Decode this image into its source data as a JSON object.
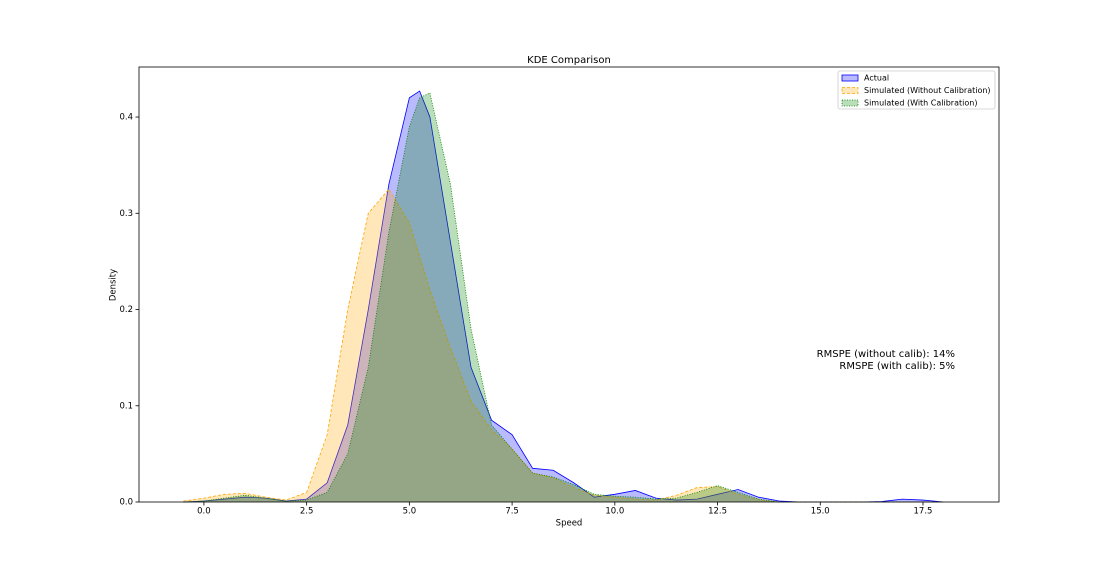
{
  "chart_data": {
    "type": "area",
    "title": "KDE Comparison",
    "xlabel": "Speed",
    "ylabel": "Density",
    "x": [
      -0.5,
      0,
      0.5,
      1,
      1.5,
      2,
      2.5,
      3,
      3.5,
      4,
      4.5,
      5,
      5.25,
      5.5,
      6,
      6.5,
      7,
      7.5,
      8,
      8.5,
      9,
      9.5,
      10,
      10.5,
      11,
      11.5,
      12,
      12.5,
      13,
      13.5,
      14,
      14.5,
      15,
      15.5,
      16,
      16.5,
      17,
      17.5,
      18
    ],
    "series": [
      {
        "name": "Actual",
        "color": "#0000ff",
        "linestyle": "solid",
        "values": [
          0,
          0.001,
          0.003,
          0.005,
          0.004,
          0.001,
          0.003,
          0.02,
          0.08,
          0.2,
          0.33,
          0.42,
          0.427,
          0.4,
          0.27,
          0.14,
          0.085,
          0.07,
          0.035,
          0.033,
          0.02,
          0.005,
          0.008,
          0.012,
          0.004,
          0.002,
          0.003,
          0.008,
          0.013,
          0.005,
          0.001,
          0,
          0,
          0,
          0,
          0.0005,
          0.003,
          0.002,
          0
        ]
      },
      {
        "name": "Simulated (Without Calibration)",
        "color": "#ffa500",
        "linestyle": "dashed",
        "values": [
          0.001,
          0.004,
          0.008,
          0.009,
          0.005,
          0.002,
          0.01,
          0.07,
          0.2,
          0.3,
          0.325,
          0.29,
          0.255,
          0.22,
          0.16,
          0.105,
          0.075,
          0.055,
          0.03,
          0.025,
          0.015,
          0.007,
          0.005,
          0.003,
          0.002,
          0.007,
          0.015,
          0.016,
          0.008,
          0.002,
          0,
          0,
          0,
          0,
          0,
          0,
          0,
          0,
          0
        ]
      },
      {
        "name": "Simulated (With Calibration)",
        "color": "#008000",
        "linestyle": "dotted",
        "values": [
          0,
          0.001,
          0.004,
          0.007,
          0.004,
          0.001,
          0.002,
          0.01,
          0.05,
          0.14,
          0.28,
          0.39,
          0.42,
          0.425,
          0.33,
          0.18,
          0.08,
          0.055,
          0.03,
          0.026,
          0.018,
          0.008,
          0.006,
          0.005,
          0.003,
          0.004,
          0.01,
          0.017,
          0.01,
          0.003,
          0,
          0,
          0,
          0,
          0,
          0,
          0,
          0,
          0
        ]
      }
    ],
    "xlim": [
      -1.58,
      19.35
    ],
    "ylim": [
      0,
      0.452
    ],
    "xticks": [
      {
        "value": 0,
        "label": "0.0"
      },
      2.5,
      {
        "value": 5,
        "label": "5.0"
      },
      7.5,
      {
        "value": 10,
        "label": "10.0"
      },
      12.5,
      {
        "value": 15,
        "label": "15.0"
      },
      17.5
    ],
    "yticks": [
      {
        "value": 0,
        "label": "0.0"
      },
      0.1,
      0.2,
      0.3,
      0.4
    ],
    "legend": "upper right",
    "annotations": [
      "RMSPE (without calib): 14%",
      "RMSPE (with calib): 5%"
    ]
  }
}
